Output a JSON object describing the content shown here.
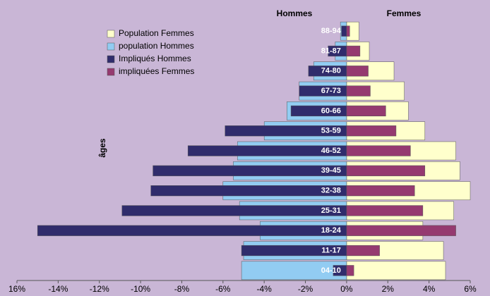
{
  "chart_data": {
    "type": "pyramid",
    "headers": [
      "Hommes",
      "Femmes"
    ],
    "ylabel": "âges",
    "categories": [
      "04-10",
      "11-17",
      "18-24",
      "25-31",
      "32-38",
      "39-45",
      "46-52",
      "53-59",
      "60-66",
      "67-73",
      "74-80",
      "81-87",
      "88-94"
    ],
    "series": [
      {
        "name": "Population Femmes",
        "color": "#ffffcc",
        "values": [
          4.8,
          4.7,
          3.7,
          5.2,
          6.0,
          5.5,
          5.3,
          3.8,
          3.0,
          2.8,
          2.3,
          1.1,
          0.6
        ]
      },
      {
        "name": "population Hommes",
        "color": "#92ccf2",
        "values": [
          -5.1,
          -5.0,
          -4.2,
          -5.2,
          -6.0,
          -5.5,
          -5.3,
          -4.0,
          -2.9,
          -2.3,
          -1.6,
          -0.55,
          -0.3
        ]
      },
      {
        "name": "Impliqués Hommes",
        "color": "#302c6c",
        "values": [
          -0.65,
          -5.1,
          -15.0,
          -10.9,
          -9.5,
          -9.4,
          -7.7,
          -5.9,
          -2.7,
          -2.3,
          -1.85,
          -0.9,
          -0.25
        ]
      },
      {
        "name": "impliquées Femmes",
        "color": "#953a70",
        "values": [
          0.35,
          1.6,
          5.3,
          3.7,
          3.3,
          3.8,
          3.1,
          2.4,
          1.9,
          1.15,
          1.05,
          0.65,
          0.15
        ]
      }
    ],
    "xlim": [
      -16,
      6
    ],
    "xticks": [
      {
        "value": -16,
        "label": "16%"
      },
      {
        "value": -14,
        "label": "-14%"
      },
      {
        "value": -12,
        "label": "-12%"
      },
      {
        "value": -10,
        "label": "-10%"
      },
      {
        "value": -8,
        "label": "-8%"
      },
      {
        "value": -6,
        "label": "-6%"
      },
      {
        "value": -4,
        "label": "-4%"
      },
      {
        "value": -2,
        "label": "-2%"
      },
      {
        "value": 0,
        "label": "0%"
      },
      {
        "value": 2,
        "label": "2%"
      },
      {
        "value": 4,
        "label": "4%"
      },
      {
        "value": 6,
        "label": "6%"
      }
    ]
  }
}
